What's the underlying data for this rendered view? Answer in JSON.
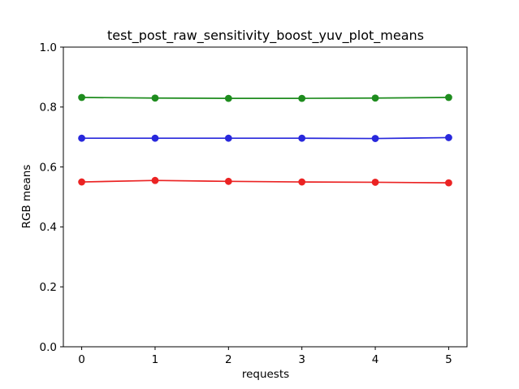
{
  "figure": {
    "background": "#ffffff",
    "text_color": "#000000",
    "spine_color": "#000000"
  },
  "chart_data": {
    "type": "line",
    "title": "test_post_raw_sensitivity_boost_yuv_plot_means",
    "xlabel": "requests",
    "ylabel": "RGB means",
    "x": [
      0,
      1,
      2,
      3,
      4,
      5
    ],
    "series": [
      {
        "name": "green",
        "color": "#1e8c1e",
        "values": [
          0.832,
          0.83,
          0.829,
          0.829,
          0.83,
          0.832
        ]
      },
      {
        "name": "blue",
        "color": "#2828dc",
        "values": [
          0.696,
          0.696,
          0.696,
          0.696,
          0.695,
          0.698
        ]
      },
      {
        "name": "red",
        "color": "#eb2323",
        "values": [
          0.55,
          0.555,
          0.552,
          0.55,
          0.549,
          0.547
        ]
      }
    ],
    "xlim": [
      -0.25,
      5.25
    ],
    "ylim": [
      0,
      1
    ],
    "xticks": [
      0,
      1,
      2,
      3,
      4,
      5
    ],
    "xtick_labels": [
      "0",
      "1",
      "2",
      "3",
      "4",
      "5"
    ],
    "yticks": [
      0.0,
      0.2,
      0.4,
      0.6,
      0.8,
      1.0
    ],
    "ytick_labels": [
      "0.0",
      "0.2",
      "0.4",
      "0.6",
      "0.8",
      "1.0"
    ],
    "grid": false,
    "legend": "none",
    "marker": "circle",
    "line_width": 1.7,
    "marker_radius": 4.4
  }
}
